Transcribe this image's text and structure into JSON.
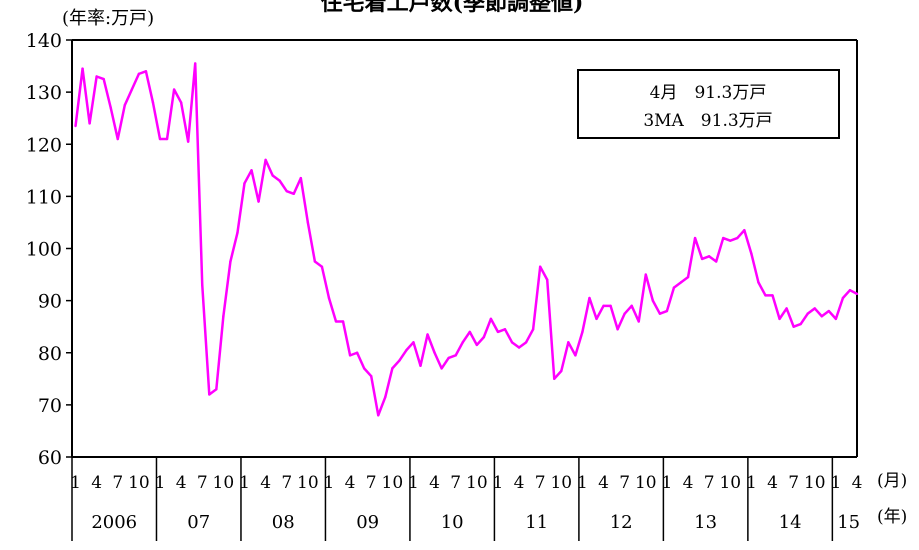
{
  "chart_data": {
    "type": "line",
    "title": "住宅着工戸数(季節調整値)",
    "unit_label": "(年率:万戸)",
    "x_unit_month": "(月)",
    "x_unit_year": "(年)",
    "ylim": [
      60,
      140
    ],
    "y_ticks": [
      60,
      70,
      80,
      90,
      100,
      110,
      120,
      130,
      140
    ],
    "grid": false,
    "legend_box": [
      "4月　91.3万戸",
      "3MA　91.3万戸"
    ],
    "legend_position": "top-right",
    "month_tick_labels": [
      "1",
      "4",
      "7",
      "10"
    ],
    "year_labels": [
      "2006",
      "07",
      "08",
      "09",
      "10",
      "11",
      "12",
      "13",
      "14",
      "15"
    ],
    "series_color": "#ff00ff",
    "series": [
      {
        "values": [
          123.5,
          134.5,
          124,
          133,
          132.5,
          127,
          121,
          127.5,
          130.5,
          133.5,
          134,
          128,
          121,
          121,
          130.5,
          128,
          120.5,
          135.5,
          93,
          72,
          73,
          87,
          97.5,
          103,
          112.5,
          115,
          109,
          117,
          114,
          113,
          111,
          110.5,
          113.5,
          105,
          97.5,
          96.5,
          90.5,
          86,
          86,
          79.5,
          80,
          77,
          75.5,
          68,
          71.5,
          77,
          78.5,
          80.5,
          82,
          77.5,
          83.5,
          80,
          77,
          79,
          79.5,
          82,
          84,
          81.5,
          83,
          86.5,
          84,
          84.5,
          82,
          81,
          82,
          84.5,
          96.5,
          94,
          75,
          76.5,
          82,
          79.5,
          84,
          90.5,
          86.5,
          89,
          89,
          84.5,
          87.5,
          89,
          86,
          95,
          90,
          87.5,
          88,
          92.5,
          93.5,
          94.5,
          102,
          98,
          98.5,
          97.5,
          102,
          101.5,
          102,
          103.5,
          99,
          93.5,
          91,
          91,
          86.5,
          88.5,
          85,
          85.5,
          87.5,
          88.5,
          87,
          88,
          86.5,
          90.5,
          92,
          91.3
        ]
      }
    ]
  }
}
